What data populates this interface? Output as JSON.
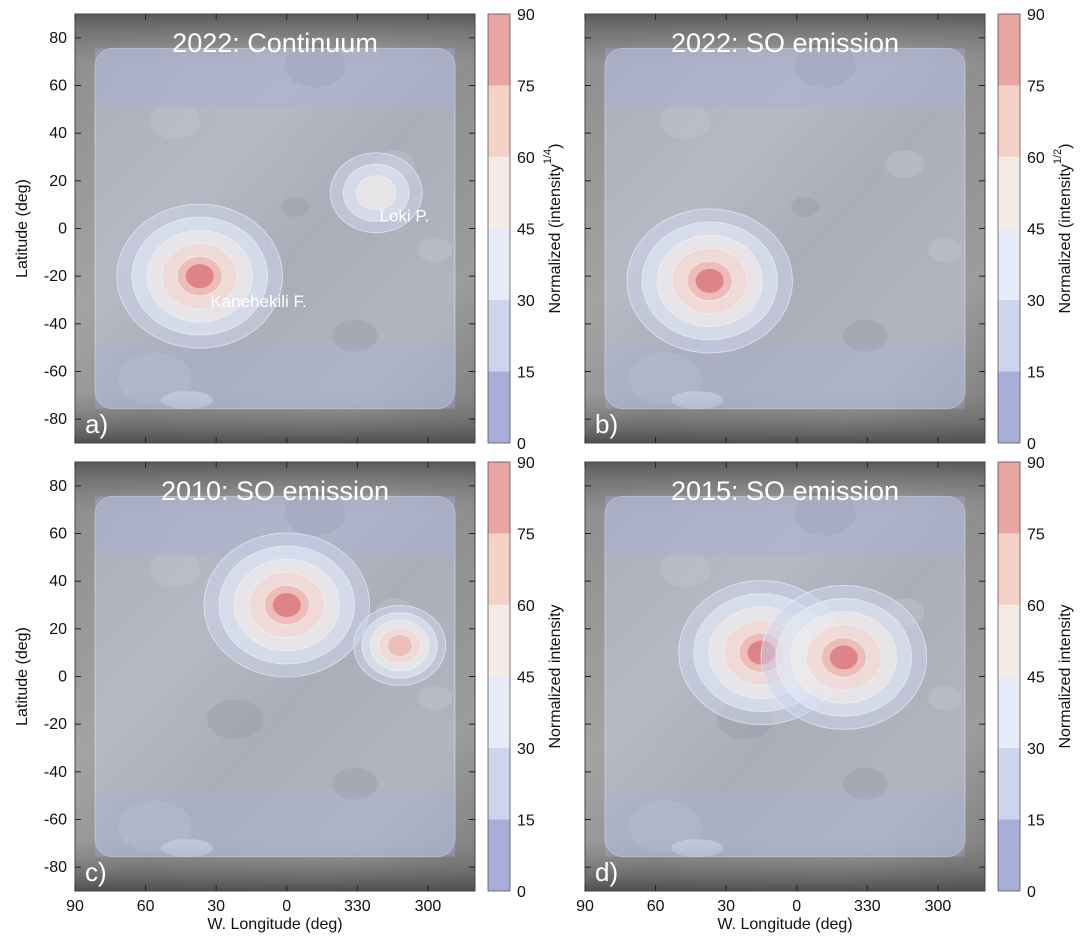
{
  "chart_data": {
    "type": "heatmap",
    "xlabel": "W. Longitude (deg)",
    "ylabel": "Latitude (deg)",
    "x_ticks": [
      "90",
      "60",
      "30",
      "0",
      "330",
      "300"
    ],
    "y_ticks": [
      "80",
      "60",
      "40",
      "20",
      "0",
      "-20",
      "-40",
      "-60",
      "-80"
    ],
    "x_range_deg_w": [
      90,
      280
    ],
    "y_range_deg": [
      -90,
      90
    ],
    "colorbar_ticks": [
      "90",
      "75",
      "60",
      "45",
      "30",
      "15",
      "0"
    ],
    "colorbar_levels": [
      0,
      15,
      30,
      45,
      60,
      75,
      90
    ],
    "colorbar_colors": [
      "#a9aed8",
      "#cdd5ec",
      "#e6ecf7",
      "#f5ece8",
      "#f5d2c8",
      "#e9a5a1"
    ],
    "panels": [
      {
        "id": "a",
        "panel_label": "a)",
        "title": "2022: Continuum",
        "colorbar_label": "Normalized (intensity",
        "colorbar_exponent": "1/4",
        "colorbar_close": ")",
        "annotations": [
          {
            "text": "Loki P.",
            "lon_w": 310,
            "lat": 3
          },
          {
            "text": "Kanehekili F.",
            "lon_w": 12,
            "lat": -33
          }
        ],
        "peaks": [
          {
            "lon_w": 37,
            "lat": -20,
            "level": 90
          },
          {
            "lon_w": 322,
            "lat": 15,
            "level": 45
          }
        ]
      },
      {
        "id": "b",
        "panel_label": "b)",
        "title": "2022: SO emission",
        "colorbar_label": "Normalized (intensity",
        "colorbar_exponent": "1/2",
        "colorbar_close": ")",
        "annotations": [],
        "peaks": [
          {
            "lon_w": 37,
            "lat": -22,
            "level": 90
          }
        ]
      },
      {
        "id": "c",
        "panel_label": "c)",
        "title": "2010: SO emission",
        "colorbar_label": "Normalized intensity",
        "colorbar_exponent": "",
        "colorbar_close": "",
        "annotations": [],
        "peaks": [
          {
            "lon_w": 0,
            "lat": 30,
            "level": 90
          },
          {
            "lon_w": 312,
            "lat": 13,
            "level": 75
          }
        ]
      },
      {
        "id": "d",
        "panel_label": "d)",
        "title": "2015: SO emission",
        "colorbar_label": "Normalized intensity",
        "colorbar_exponent": "",
        "colorbar_close": "",
        "annotations": [],
        "peaks": [
          {
            "lon_w": 15,
            "lat": 10,
            "level": 90
          },
          {
            "lon_w": 340,
            "lat": 8,
            "level": 90
          }
        ]
      }
    ]
  }
}
